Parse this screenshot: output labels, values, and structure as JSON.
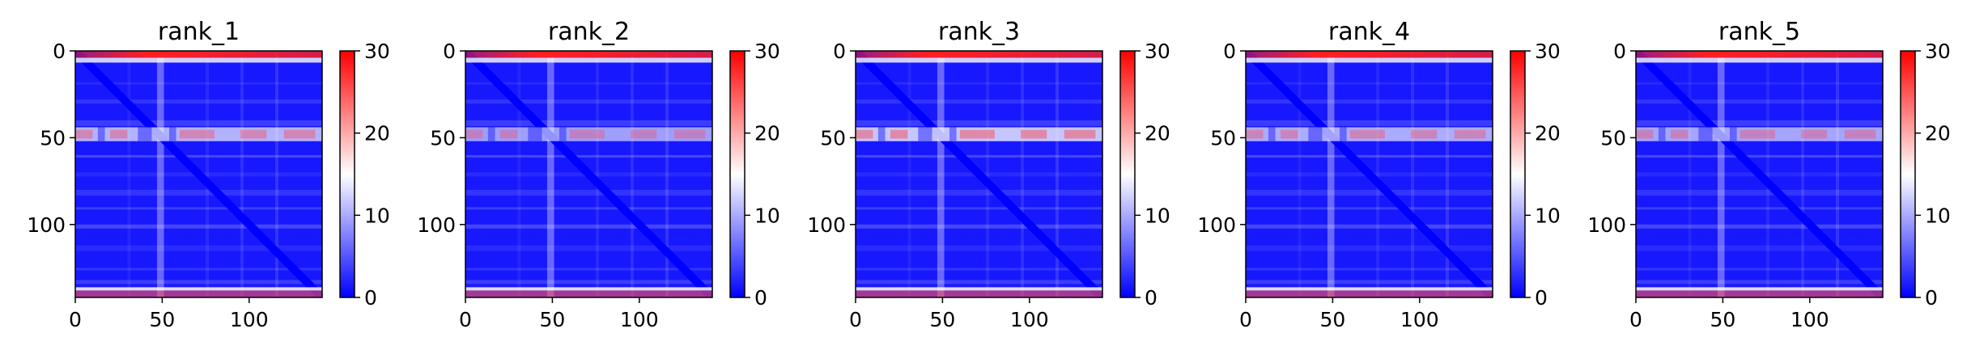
{
  "chart_data": [
    {
      "type": "heatmap",
      "title": "rank_1",
      "x_ticks": [
        "0",
        "50",
        "100"
      ],
      "y_ticks": [
        "0",
        "50",
        "100"
      ],
      "xlim": [
        0,
        142
      ],
      "ylim": [
        142,
        0
      ],
      "colorbar": {
        "ticks": [
          "0",
          "10",
          "20",
          "30"
        ],
        "range": [
          0,
          30
        ],
        "colormap": "bwr"
      },
      "bands": {
        "top_rows": [
          0,
          3
        ],
        "bottom_rows": [
          138,
          142
        ],
        "mid_rows": [
          44,
          52
        ],
        "diagonal": true,
        "bright_column": 49
      },
      "mid_band_strength": 0.85
    },
    {
      "type": "heatmap",
      "title": "rank_2",
      "x_ticks": [
        "0",
        "50",
        "100"
      ],
      "y_ticks": [
        "0",
        "50",
        "100"
      ],
      "xlim": [
        0,
        142
      ],
      "ylim": [
        142,
        0
      ],
      "colorbar": {
        "ticks": [
          "0",
          "10",
          "20",
          "30"
        ],
        "range": [
          0,
          30
        ],
        "colormap": "bwr"
      },
      "bands": {
        "top_rows": [
          0,
          3
        ],
        "bottom_rows": [
          138,
          142
        ],
        "mid_rows": [
          44,
          52
        ],
        "diagonal": true,
        "bright_column": 49
      },
      "mid_band_strength": 0.7
    },
    {
      "type": "heatmap",
      "title": "rank_3",
      "x_ticks": [
        "0",
        "50",
        "100"
      ],
      "y_ticks": [
        "0",
        "50",
        "100"
      ],
      "xlim": [
        0,
        142
      ],
      "ylim": [
        142,
        0
      ],
      "colorbar": {
        "ticks": [
          "0",
          "10",
          "20",
          "30"
        ],
        "range": [
          0,
          30
        ],
        "colormap": "bwr"
      },
      "bands": {
        "top_rows": [
          0,
          3
        ],
        "bottom_rows": [
          138,
          142
        ],
        "mid_rows": [
          44,
          52
        ],
        "diagonal": true,
        "bright_column": 49
      },
      "mid_band_strength": 1.0
    },
    {
      "type": "heatmap",
      "title": "rank_4",
      "x_ticks": [
        "0",
        "50",
        "100"
      ],
      "y_ticks": [
        "0",
        "50",
        "100"
      ],
      "xlim": [
        0,
        142
      ],
      "ylim": [
        142,
        0
      ],
      "colorbar": {
        "ticks": [
          "0",
          "10",
          "20",
          "30"
        ],
        "range": [
          0,
          30
        ],
        "colormap": "bwr"
      },
      "bands": {
        "top_rows": [
          0,
          3
        ],
        "bottom_rows": [
          138,
          142
        ],
        "mid_rows": [
          44,
          52
        ],
        "diagonal": true,
        "bright_column": 49
      },
      "mid_band_strength": 0.8
    },
    {
      "type": "heatmap",
      "title": "rank_5",
      "x_ticks": [
        "0",
        "50",
        "100"
      ],
      "y_ticks": [
        "0",
        "50",
        "100"
      ],
      "xlim": [
        0,
        142
      ],
      "ylim": [
        142,
        0
      ],
      "colorbar": {
        "ticks": [
          "0",
          "10",
          "20",
          "30"
        ],
        "range": [
          0,
          30
        ],
        "colormap": "bwr"
      },
      "bands": {
        "top_rows": [
          0,
          3
        ],
        "bottom_rows": [
          138,
          142
        ],
        "mid_rows": [
          44,
          52
        ],
        "diagonal": true,
        "bright_column": 49
      },
      "mid_band_strength": 0.75
    }
  ]
}
